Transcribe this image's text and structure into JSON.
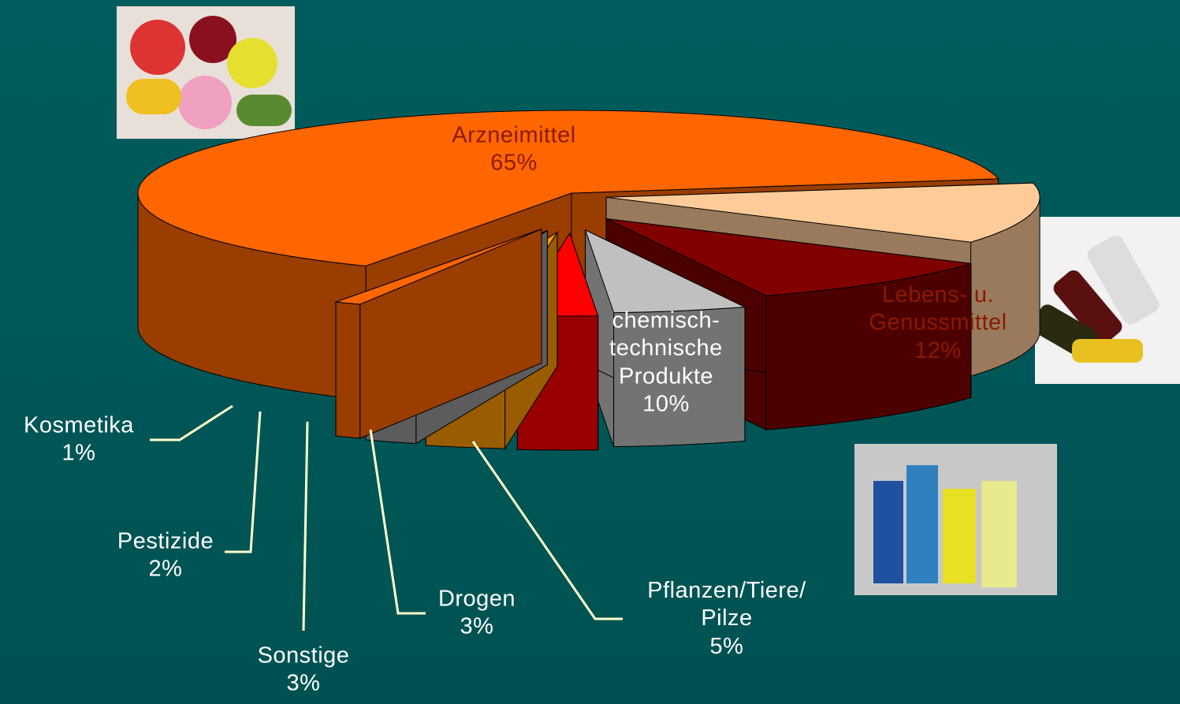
{
  "chart_data": {
    "type": "pie",
    "categories": [
      "Arzneimittel",
      "Lebens- u.\nGenussmittel",
      "chemisch-\ntechnische\nProdukte",
      "Pflanzen/Tiere/\nPilze",
      "Drogen",
      "Sonstige",
      "Pestizide",
      "Kosmetika"
    ],
    "values": [
      65,
      12,
      10,
      5,
      3,
      3,
      2,
      1
    ],
    "value_labels": [
      "65%",
      "12%",
      "10%",
      "5%",
      "3%",
      "3%",
      "2%",
      "1%"
    ],
    "colors": [
      "#ff6600",
      "#ffcc99",
      "#800000",
      "#c0c0c0",
      "#ff0000",
      "#ff9900",
      "#999999",
      "#ff6600"
    ]
  }
}
